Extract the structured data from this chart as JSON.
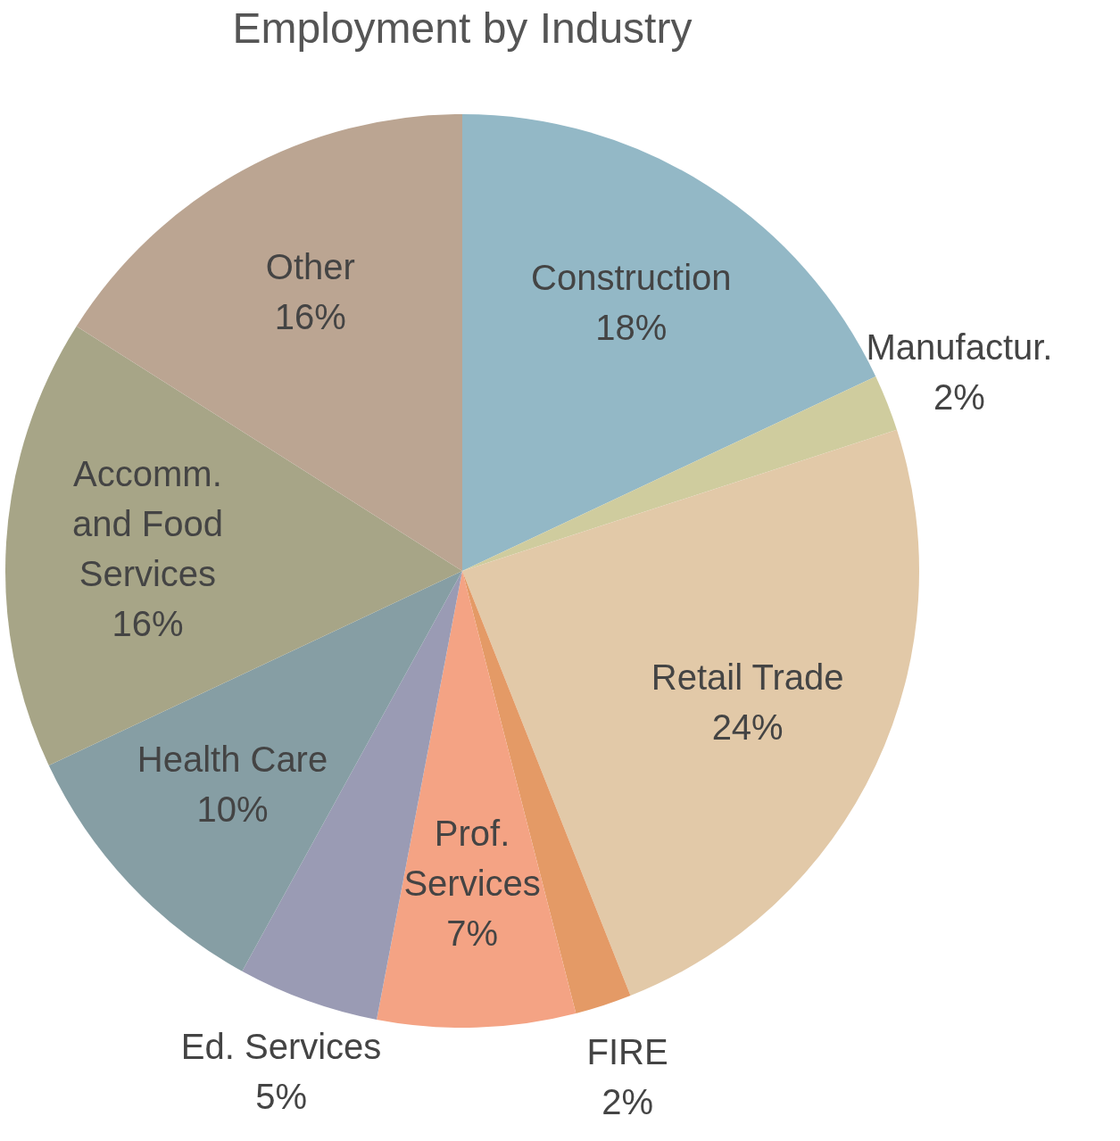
{
  "chart_data": {
    "type": "pie",
    "title": "Employment by Industry",
    "categories": [
      "Construction",
      "Manufactur.",
      "Retail Trade",
      "FIRE",
      "Prof.\nServices",
      "Ed. Services",
      "Health Care",
      "Accomm.\nand Food\nServices",
      "Other"
    ],
    "values": [
      18,
      2,
      24,
      2,
      7,
      5,
      10,
      16,
      16
    ],
    "value_labels": [
      "18%",
      "2%",
      "24%",
      "2%",
      "7%",
      "5%",
      "10%",
      "16%",
      "16%"
    ],
    "colors": [
      "#93b8c6",
      "#cfcc9e",
      "#e2c9a8",
      "#e49a66",
      "#f4a384",
      "#9a9bb4",
      "#869ea4",
      "#a7a587",
      "#bba592"
    ],
    "legend": false
  }
}
